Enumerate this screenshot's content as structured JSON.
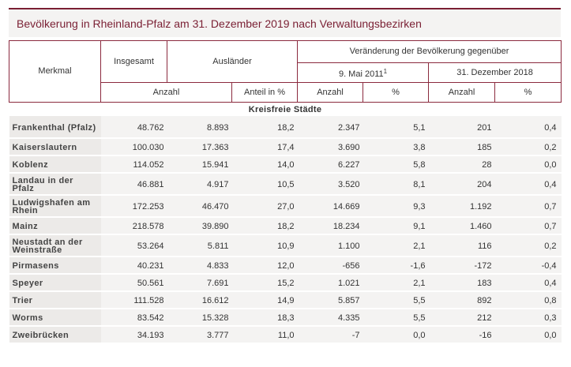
{
  "title": "Bevölkerung in Rheinland-Pfalz am 31. Dezember 2019 nach Verwaltungsbezirken",
  "header": {
    "merkmal": "Merkmal",
    "insgesamt": "Insgesamt",
    "auslaender": "Ausländer",
    "veraenderung": "Veränderung der Bevölkerung gegenüber",
    "mai": "9. Mai 2011",
    "mai_sup": "1",
    "dez": "31. Dezember 2018",
    "anzahl": "Anzahl",
    "anteil": "Anteil in %",
    "anzahl2": "Anzahl",
    "pct1": "%",
    "anzahl3": "Anzahl",
    "pct2": "%"
  },
  "section": "Kreisfreie Städte",
  "rows": [
    {
      "name": "Frankenthal (Pfalz)",
      "insgesamt": "48.762",
      "auslaender": "8.893",
      "anteil": "18,2",
      "mai_anzahl": "2.347",
      "mai_pct": "5,1",
      "dez_anzahl": "201",
      "dez_pct": "0,4"
    },
    {
      "name": "Kaiserslautern",
      "insgesamt": "100.030",
      "auslaender": "17.363",
      "anteil": "17,4",
      "mai_anzahl": "3.690",
      "mai_pct": "3,8",
      "dez_anzahl": "185",
      "dez_pct": "0,2"
    },
    {
      "name": "Koblenz",
      "insgesamt": "114.052",
      "auslaender": "15.941",
      "anteil": "14,0",
      "mai_anzahl": "6.227",
      "mai_pct": "5,8",
      "dez_anzahl": "28",
      "dez_pct": "0,0"
    },
    {
      "name": "Landau in der Pfalz",
      "insgesamt": "46.881",
      "auslaender": "4.917",
      "anteil": "10,5",
      "mai_anzahl": "3.520",
      "mai_pct": "8,1",
      "dez_anzahl": "204",
      "dez_pct": "0,4"
    },
    {
      "name": "Ludwigshafen am Rhein",
      "insgesamt": "172.253",
      "auslaender": "46.470",
      "anteil": "27,0",
      "mai_anzahl": "14.669",
      "mai_pct": "9,3",
      "dez_anzahl": "1.192",
      "dez_pct": "0,7"
    },
    {
      "name": "Mainz",
      "insgesamt": "218.578",
      "auslaender": "39.890",
      "anteil": "18,2",
      "mai_anzahl": "18.234",
      "mai_pct": "9,1",
      "dez_anzahl": "1.460",
      "dez_pct": "0,7"
    },
    {
      "name": "Neustadt an der Weinstraße",
      "insgesamt": "53.264",
      "auslaender": "5.811",
      "anteil": "10,9",
      "mai_anzahl": "1.100",
      "mai_pct": "2,1",
      "dez_anzahl": "116",
      "dez_pct": "0,2"
    },
    {
      "name": "Pirmasens",
      "insgesamt": "40.231",
      "auslaender": "4.833",
      "anteil": "12,0",
      "mai_anzahl": "-656",
      "mai_pct": "-1,6",
      "dez_anzahl": "-172",
      "dez_pct": "-0,4"
    },
    {
      "name": "Speyer",
      "insgesamt": "50.561",
      "auslaender": "7.691",
      "anteil": "15,2",
      "mai_anzahl": "1.021",
      "mai_pct": "2,1",
      "dez_anzahl": "183",
      "dez_pct": "0,4"
    },
    {
      "name": "Trier",
      "insgesamt": "111.528",
      "auslaender": "16.612",
      "anteil": "14,9",
      "mai_anzahl": "5.857",
      "mai_pct": "5,5",
      "dez_anzahl": "892",
      "dez_pct": "0,8"
    },
    {
      "name": "Worms",
      "insgesamt": "83.542",
      "auslaender": "15.328",
      "anteil": "18,3",
      "mai_anzahl": "4.335",
      "mai_pct": "5,5",
      "dez_anzahl": "212",
      "dez_pct": "0,3"
    },
    {
      "name": "Zweibrücken",
      "insgesamt": "34.193",
      "auslaender": "3.777",
      "anteil": "11,0",
      "mai_anzahl": "-7",
      "mai_pct": "0,0",
      "dez_anzahl": "-16",
      "dez_pct": "0,0"
    }
  ]
}
